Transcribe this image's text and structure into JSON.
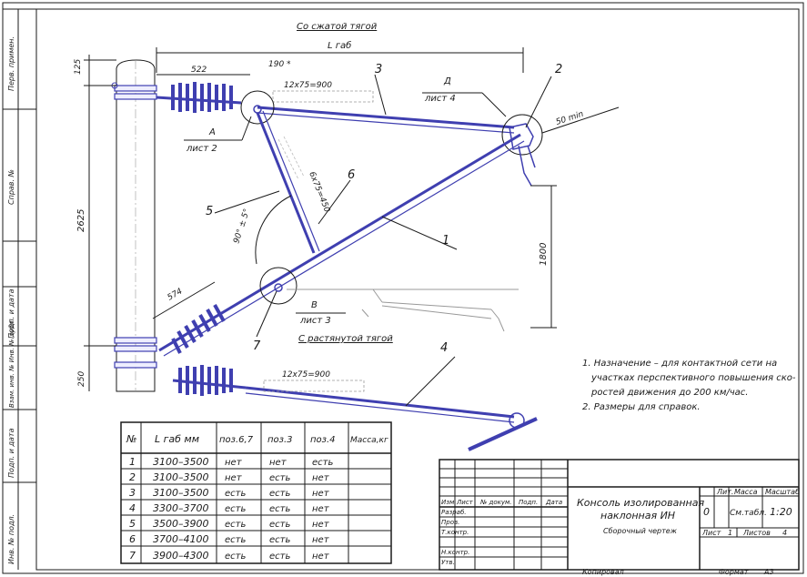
{
  "drawing": {
    "title_top": "Со сжатой тягой",
    "title_bottom": "С растянутой тягой",
    "dims": {
      "l_gab": "L габ",
      "d125": "125",
      "d522": "522",
      "d190": "190 *",
      "d2625": "2625",
      "d250": "250",
      "d574": "574",
      "d1800": "1800",
      "d50": "50 min",
      "angle": "90° ± 5°",
      "ins_top": "12х75=900",
      "ins_mid": "6х75=450",
      "ins_bot": "12х75=900"
    },
    "callouts": {
      "p1": "1",
      "p2": "2",
      "p3": "3",
      "p4": "4",
      "p5": "5",
      "p6": "6",
      "p7": "7"
    },
    "views": {
      "a": "А",
      "a_sheet": "лист 2",
      "b": "В",
      "b_sheet": "лист 3",
      "d": "Д",
      "d_sheet": "лист 4"
    }
  },
  "notes": [
    "1. Назначение – для контактной сети на",
    "участках перспективного повышения ско-",
    "ростей движения до 200 км/час.",
    "2. Размеры для справок."
  ],
  "spec_table": {
    "headers": [
      "№",
      "L габ мм",
      "поз.6,7",
      "поз.3",
      "поз.4",
      "Масса,кг"
    ],
    "rows": [
      [
        "1",
        "3100–3500",
        "нет",
        "нет",
        "есть",
        ""
      ],
      [
        "2",
        "3100–3500",
        "нет",
        "есть",
        "нет",
        ""
      ],
      [
        "3",
        "3100–3500",
        "есть",
        "есть",
        "нет",
        ""
      ],
      [
        "4",
        "3300–3700",
        "есть",
        "есть",
        "нет",
        ""
      ],
      [
        "5",
        "3500–3900",
        "есть",
        "есть",
        "нет",
        ""
      ],
      [
        "6",
        "3700–4100",
        "есть",
        "есть",
        "нет",
        ""
      ],
      [
        "7",
        "3900–4300",
        "есть",
        "есть",
        "нет",
        ""
      ]
    ]
  },
  "title_block": {
    "name_line1": "Консоль изолированная",
    "name_line2": "наклонная ИН",
    "subtitle": "Сборочный чертеж",
    "lit_label": "Лит.",
    "mass_label": "Масса",
    "scale_label": "Масштаб",
    "lit_value": "0",
    "mass_value": "См.табл.",
    "scale_value": "1:20",
    "sheet_label": "Лист",
    "sheet_value": "1",
    "sheets_label": "Листов",
    "sheets_value": "4",
    "head_izm": "Изм.",
    "head_list": "Лист",
    "head_doc": "№ докум.",
    "head_sign": "Подп.",
    "head_date": "Дата",
    "row_razrab": "Разраб.",
    "row_prov": "Пров.",
    "row_tkontr": "Т.контр.",
    "row_nkontr": "Н.контр.",
    "row_utv": "Утв.",
    "copied": "Копировал",
    "format_label": "Формат",
    "format_value": "А3"
  },
  "margin_strip": {
    "perv": "Перв. примен.",
    "sprav": "Справ. №",
    "podp_data1": "Подп. и дата",
    "inv_dubl": "Взам. инв. № Инв. № дубл.",
    "podp_data2": "Подп. и дата",
    "inv_podl": "Инв. № подл."
  }
}
